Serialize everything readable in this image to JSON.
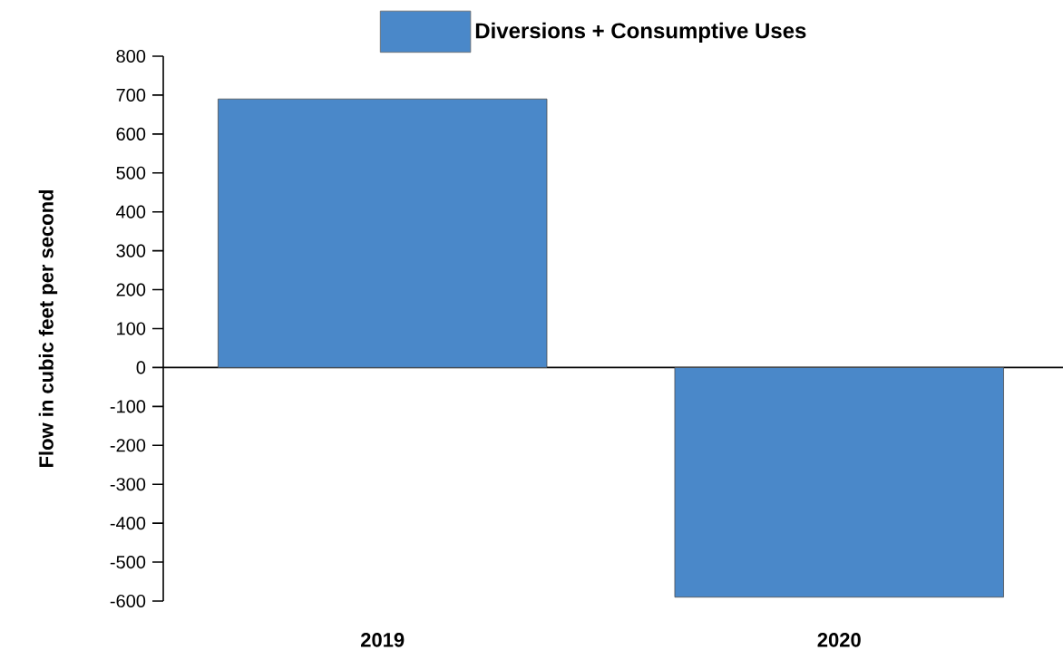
{
  "chart_data": {
    "type": "bar",
    "ylabel": "Flow in cubic feet per second",
    "categories": [
      "2019",
      "2020"
    ],
    "series": [
      {
        "name": "Diversions + Consumptive Uses",
        "color": "#4a88c9",
        "values": [
          690,
          -590
        ]
      }
    ],
    "ylim": [
      -600,
      800
    ],
    "yticks": [
      -600,
      -500,
      -400,
      -300,
      -200,
      -100,
      0,
      100,
      200,
      300,
      400,
      500,
      600,
      700,
      800
    ],
    "legend": "top"
  }
}
